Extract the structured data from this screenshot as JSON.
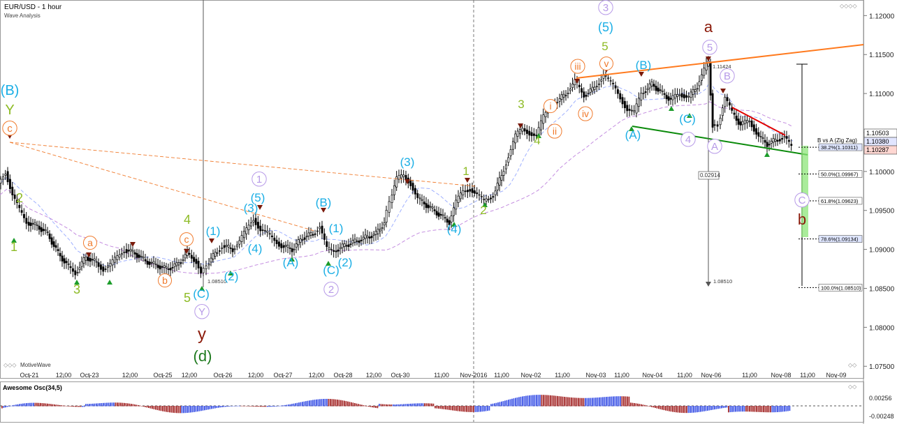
{
  "header": {
    "title": "EUR/USD - 1 hour",
    "subtitle": "Wave Analysis",
    "watermark": "MotiveWave"
  },
  "osc": {
    "title": "Awesome Osc(34,5)",
    "tick_top": "0.00256",
    "tick_bottom": "-0.00248"
  },
  "colors": {
    "green": "#8dbb25",
    "darkgreen": "#1f7a1f",
    "cyan": "#1aaee5",
    "orange": "#f07a2c",
    "purple": "#b79ae8",
    "darkred": "#8b1a0a",
    "up": "#3e55e6",
    "down": "#a52a2a"
  },
  "chart_data": {
    "type": "candlestick",
    "title": "EUR/USD - 1 hour",
    "ylim": [
      1.0735,
      1.122
    ],
    "y_ticks": [
      "1.12000",
      "1.11500",
      "1.11000",
      "1.10500",
      "1.10000",
      "1.09500",
      "1.09000",
      "1.08500",
      "1.08000",
      "1.07500"
    ],
    "x_ticks": [
      "Oct-21",
      "12:00",
      "Oct-23",
      "12:00",
      "Oct-25",
      "12:00",
      "Oct-26",
      "12:00",
      "Oct-27",
      "12:00",
      "Oct-28",
      "12:00",
      "Oct-30",
      "11:00",
      "Nov-2016",
      "11:00",
      "Nov-02",
      "11:00",
      "Nov-03",
      "11:00",
      "Nov-04",
      "11:00",
      "Nov-06",
      "11:00",
      "Nov-08",
      "11:00",
      "Nov-09"
    ],
    "price_tags": {
      "last": "1.10503",
      "high": "1.10380",
      "low": "1.10287"
    },
    "projection": {
      "label": "B vs A (Zig Zag)",
      "levels": [
        {
          "label": "38.2%(1.10311)",
          "price": 1.10311
        },
        {
          "label": "50.0%(1.09967)",
          "price": 1.09967
        },
        {
          "label": "61.8%(1.09623)",
          "price": 1.09623
        },
        {
          "label": "78.6%(1.09134)",
          "price": 1.09134
        },
        {
          "label": "100.0%(1.08510)",
          "price": 1.0851
        }
      ]
    },
    "annotations": {
      "high_price": "1.11424",
      "low_price": "1.08510",
      "range_box": "0.02914",
      "range_low": "1.08510"
    },
    "wave_labels": [
      {
        "t": "(B)",
        "c": "cyan"
      },
      {
        "t": "Y",
        "c": "green"
      },
      {
        "t": "c",
        "c": "orange"
      },
      {
        "t": "2",
        "c": "green"
      },
      {
        "t": "1",
        "c": "green"
      },
      {
        "t": "3",
        "c": "green"
      },
      {
        "t": "a",
        "c": "orange"
      },
      {
        "t": "b",
        "c": "orange"
      },
      {
        "t": "c",
        "c": "orange"
      },
      {
        "t": "4",
        "c": "green"
      },
      {
        "t": "5",
        "c": "green"
      },
      {
        "t": "(C)",
        "c": "cyan"
      },
      {
        "t": "Y",
        "c": "purple"
      },
      {
        "t": "y",
        "c": "darkred"
      },
      {
        "t": "(d)",
        "c": "darkgreen"
      },
      {
        "t": "(1)",
        "c": "cyan"
      },
      {
        "t": "(2)",
        "c": "cyan"
      },
      {
        "t": "1",
        "c": "purple"
      },
      {
        "t": "(3)",
        "c": "cyan"
      },
      {
        "t": "(5)",
        "c": "cyan"
      },
      {
        "t": "(4)",
        "c": "cyan"
      },
      {
        "t": "(A)",
        "c": "cyan"
      },
      {
        "t": "(B)",
        "c": "cyan"
      },
      {
        "t": "(1)",
        "c": "cyan"
      },
      {
        "t": "(C)",
        "c": "cyan"
      },
      {
        "t": "(2)",
        "c": "cyan"
      },
      {
        "t": "2",
        "c": "purple"
      },
      {
        "t": "(3)",
        "c": "cyan"
      },
      {
        "t": "(4)",
        "c": "cyan"
      },
      {
        "t": "1",
        "c": "green"
      },
      {
        "t": "2",
        "c": "green"
      },
      {
        "t": "3",
        "c": "green"
      },
      {
        "t": "4",
        "c": "green"
      },
      {
        "t": "i",
        "c": "orange"
      },
      {
        "t": "ii",
        "c": "orange"
      },
      {
        "t": "iii",
        "c": "orange"
      },
      {
        "t": "iv",
        "c": "orange"
      },
      {
        "t": "v",
        "c": "orange"
      },
      {
        "t": "5",
        "c": "green"
      },
      {
        "t": "(5)",
        "c": "cyan"
      },
      {
        "t": "3",
        "c": "purple"
      },
      {
        "t": "(A)",
        "c": "cyan"
      },
      {
        "t": "(B)",
        "c": "cyan"
      },
      {
        "t": "(C)",
        "c": "cyan"
      },
      {
        "t": "4",
        "c": "purple"
      },
      {
        "t": "a",
        "c": "darkred"
      },
      {
        "t": "5",
        "c": "purple"
      },
      {
        "t": "B",
        "c": "purple"
      },
      {
        "t": "A",
        "c": "purple"
      },
      {
        "t": "C",
        "c": "purple"
      },
      {
        "t": "b",
        "c": "darkred"
      }
    ],
    "close_path": [
      [
        0,
        1.0985
      ],
      [
        10,
        1.1
      ],
      [
        20,
        1.097
      ],
      [
        30,
        1.095
      ],
      [
        40,
        1.0935
      ],
      [
        55,
        1.093
      ],
      [
        70,
        1.092
      ],
      [
        85,
        1.0895
      ],
      [
        100,
        1.0878
      ],
      [
        110,
        1.087
      ],
      [
        125,
        1.089
      ],
      [
        140,
        1.0883
      ],
      [
        150,
        1.0875
      ],
      [
        160,
        1.088
      ],
      [
        170,
        1.089
      ],
      [
        180,
        1.09
      ],
      [
        195,
        1.0895
      ],
      [
        210,
        1.0885
      ],
      [
        225,
        1.088
      ],
      [
        240,
        1.0875
      ],
      [
        255,
        1.088
      ],
      [
        270,
        1.0895
      ],
      [
        283,
        1.0885
      ],
      [
        290,
        1.087
      ],
      [
        298,
        1.088
      ],
      [
        310,
        1.0895
      ],
      [
        320,
        1.0905
      ],
      [
        335,
        1.09
      ],
      [
        345,
        1.091
      ],
      [
        355,
        1.0925
      ],
      [
        365,
        1.094
      ],
      [
        375,
        1.0925
      ],
      [
        385,
        1.092
      ],
      [
        395,
        1.0912
      ],
      [
        405,
        1.0905
      ],
      [
        420,
        1.09
      ],
      [
        435,
        1.0915
      ],
      [
        450,
        1.092
      ],
      [
        460,
        1.093
      ],
      [
        470,
        1.09
      ],
      [
        480,
        1.0898
      ],
      [
        495,
        1.0905
      ],
      [
        510,
        1.091
      ],
      [
        525,
        1.0915
      ],
      [
        540,
        1.092
      ],
      [
        552,
        1.0935
      ],
      [
        560,
        1.096
      ],
      [
        570,
        1.099
      ],
      [
        580,
        1.0995
      ],
      [
        590,
        1.0985
      ],
      [
        600,
        1.0965
      ],
      [
        615,
        1.0955
      ],
      [
        630,
        1.0945
      ],
      [
        645,
        1.0935
      ],
      [
        655,
        1.096
      ],
      [
        665,
        1.0975
      ],
      [
        675,
        1.0978
      ],
      [
        685,
        1.097
      ],
      [
        695,
        1.0962
      ],
      [
        708,
        1.097
      ],
      [
        720,
        1.0995
      ],
      [
        730,
        1.102
      ],
      [
        740,
        1.1045
      ],
      [
        750,
        1.1055
      ],
      [
        760,
        1.105
      ],
      [
        770,
        1.1045
      ],
      [
        780,
        1.107
      ],
      [
        790,
        1.1085
      ],
      [
        800,
        1.109
      ],
      [
        812,
        1.11
      ],
      [
        825,
        1.1115
      ],
      [
        838,
        1.1098
      ],
      [
        850,
        1.1105
      ],
      [
        866,
        1.1123
      ],
      [
        880,
        1.111
      ],
      [
        890,
        1.1095
      ],
      [
        900,
        1.108
      ],
      [
        910,
        1.1075
      ],
      [
        920,
        1.11
      ],
      [
        935,
        1.1112
      ],
      [
        950,
        1.11
      ],
      [
        962,
        1.1092
      ],
      [
        975,
        1.11
      ],
      [
        988,
        1.1095
      ],
      [
        1000,
        1.111
      ],
      [
        1010,
        1.113
      ],
      [
        1016,
        1.114
      ],
      [
        1022,
        1.106
      ],
      [
        1030,
        1.106
      ],
      [
        1040,
        1.1095
      ],
      [
        1050,
        1.1075
      ],
      [
        1062,
        1.106
      ],
      [
        1075,
        1.1065
      ],
      [
        1088,
        1.1045
      ],
      [
        1100,
        1.1035
      ],
      [
        1112,
        1.104
      ],
      [
        1125,
        1.1045
      ],
      [
        1135,
        1.103
      ]
    ]
  }
}
